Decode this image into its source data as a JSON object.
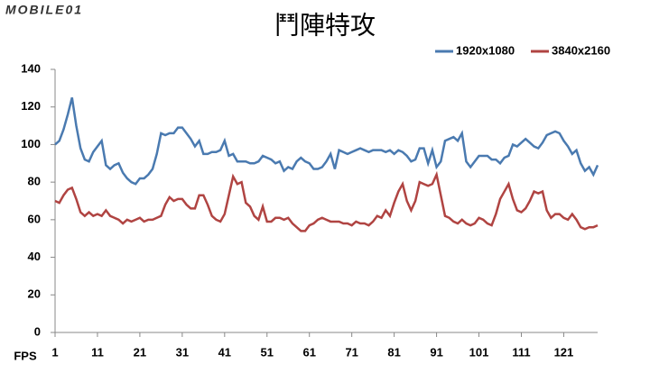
{
  "chart_data": {
    "type": "line",
    "title": "鬥陣特攻",
    "watermark": "MOBILE01",
    "ylabel": "FPS",
    "x": [
      1,
      2,
      3,
      4,
      5,
      6,
      7,
      8,
      9,
      10,
      11,
      12,
      13,
      14,
      15,
      16,
      17,
      18,
      19,
      20,
      21,
      22,
      23,
      24,
      25,
      26,
      27,
      28,
      29,
      30,
      31,
      32,
      33,
      34,
      35,
      36,
      37,
      38,
      39,
      40,
      41,
      42,
      43,
      44,
      45,
      46,
      47,
      48,
      49,
      50,
      51,
      52,
      53,
      54,
      55,
      56,
      57,
      58,
      59,
      60,
      61,
      62,
      63,
      64,
      65,
      66,
      67,
      68,
      69,
      70,
      71,
      72,
      73,
      74,
      75,
      76,
      77,
      78,
      79,
      80,
      81,
      82,
      83,
      84,
      85,
      86,
      87,
      88,
      89,
      90,
      91,
      92,
      93,
      94,
      95,
      96,
      97,
      98,
      99,
      100,
      101,
      102,
      103,
      104,
      105,
      106,
      107,
      108,
      109,
      110,
      111,
      112,
      113,
      114,
      115,
      116,
      117,
      118,
      119,
      120,
      121,
      122,
      123,
      124,
      125,
      126,
      127,
      128,
      129
    ],
    "series": [
      {
        "name": "1920x1080",
        "color": "#4a7ab0",
        "values": [
          100,
          102,
          108,
          116,
          125,
          110,
          98,
          92,
          91,
          96,
          99,
          102,
          89,
          87,
          89,
          90,
          85,
          82,
          80,
          79,
          82,
          82,
          84,
          87,
          95,
          106,
          105,
          106,
          106,
          109,
          109,
          106,
          103,
          99,
          102,
          95,
          95,
          96,
          96,
          97,
          102,
          94,
          95,
          91,
          91,
          91,
          90,
          90,
          91,
          94,
          93,
          92,
          90,
          91,
          86,
          88,
          87,
          91,
          93,
          91,
          90,
          87,
          87,
          88,
          91,
          95,
          87,
          97,
          96,
          95,
          96,
          97,
          98,
          97,
          96,
          97,
          97,
          97,
          96,
          97,
          95,
          97,
          96,
          94,
          91,
          92,
          98,
          98,
          90,
          97,
          88,
          91,
          102,
          103,
          104,
          102,
          106,
          91,
          88,
          91,
          94,
          94,
          94,
          92,
          92,
          90,
          93,
          94,
          100,
          99,
          101,
          103,
          101,
          99,
          98,
          101,
          105,
          106,
          107,
          106,
          102,
          99,
          95,
          97,
          90,
          86,
          88,
          84,
          89
        ]
      },
      {
        "name": "3840x2160",
        "color": "#b04442",
        "values": [
          70,
          69,
          73,
          76,
          77,
          71,
          64,
          62,
          64,
          62,
          63,
          62,
          65,
          62,
          61,
          60,
          58,
          60,
          59,
          60,
          61,
          59,
          60,
          60,
          61,
          62,
          68,
          72,
          70,
          71,
          71,
          68,
          66,
          66,
          73,
          73,
          68,
          62,
          60,
          59,
          63,
          73,
          83,
          79,
          80,
          69,
          67,
          62,
          60,
          67,
          59,
          59,
          61,
          61,
          60,
          61,
          58,
          56,
          54,
          54,
          57,
          58,
          60,
          61,
          60,
          59,
          59,
          59,
          58,
          58,
          57,
          59,
          58,
          58,
          57,
          59,
          62,
          61,
          65,
          62,
          69,
          75,
          79,
          70,
          65,
          70,
          80,
          79,
          78,
          79,
          84,
          73,
          62,
          61,
          59,
          58,
          60,
          58,
          57,
          58,
          61,
          60,
          58,
          57,
          63,
          71,
          75,
          79,
          71,
          65,
          64,
          66,
          70,
          75,
          74,
          75,
          65,
          61,
          63,
          63,
          61,
          60,
          63,
          60,
          56,
          55,
          56,
          56,
          57
        ]
      }
    ],
    "xlim": [
      1,
      129
    ],
    "xticks": [
      1,
      11,
      21,
      31,
      41,
      51,
      61,
      71,
      81,
      91,
      101,
      111,
      121
    ],
    "ylim": [
      0,
      140
    ],
    "yticks": [
      0,
      20,
      40,
      60,
      80,
      100,
      120,
      140
    ],
    "legend": "top-right"
  }
}
